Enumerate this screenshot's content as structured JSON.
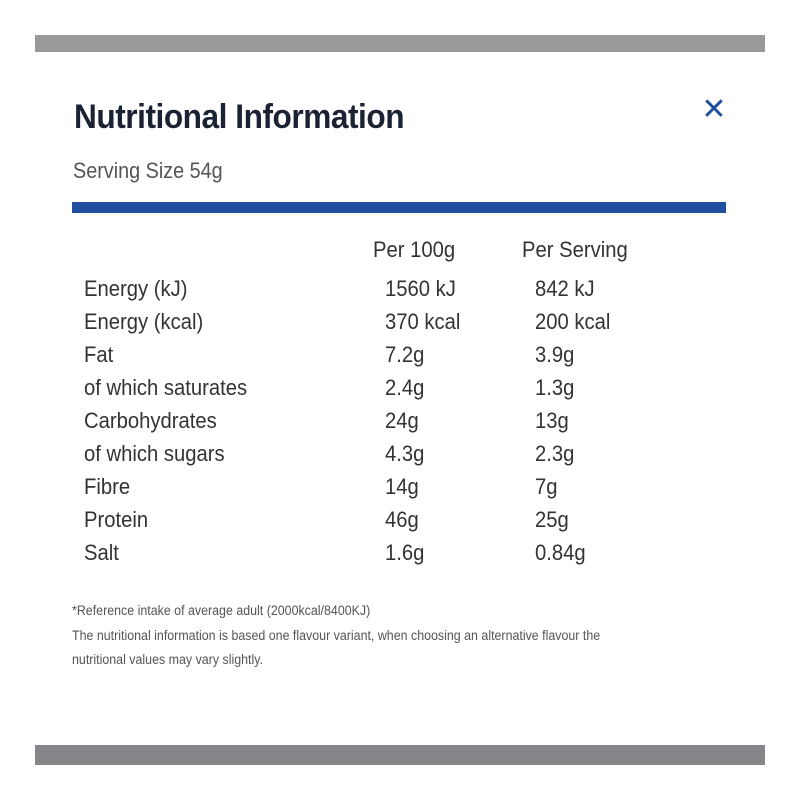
{
  "title": "Nutritional Information",
  "close_icon": "close-icon",
  "serving_size": "Serving Size 54g",
  "columns": [
    "Per 100g",
    "Per Serving"
  ],
  "rows": [
    {
      "label": "Energy (kJ)",
      "per100": "1560 kJ",
      "serving": "842 kJ"
    },
    {
      "label": "Energy (kcal)",
      "per100": "370 kcal",
      "serving": "200 kcal"
    },
    {
      "label": "Fat",
      "per100": "7.2g",
      "serving": "3.9g"
    },
    {
      "label": "of which saturates",
      "per100": "2.4g",
      "serving": "1.3g"
    },
    {
      "label": "Carbohydrates",
      "per100": "24g",
      "serving": "13g"
    },
    {
      "label": "of which sugars",
      "per100": "4.3g",
      "serving": "2.3g"
    },
    {
      "label": "Fibre",
      "per100": "14g",
      "serving": "7g"
    },
    {
      "label": "Protein",
      "per100": "46g",
      "serving": "25g"
    },
    {
      "label": "Salt",
      "per100": "1.6g",
      "serving": "0.84g"
    }
  ],
  "notes": [
    "*Reference intake of average adult (2000kcal/8400KJ)",
    "The nutritional information is based one flavour variant, when choosing an alternative flavour the",
    "nutritional values may vary slightly."
  ],
  "colors": {
    "accent": "#1f4f9e",
    "title": "#1b2233"
  }
}
